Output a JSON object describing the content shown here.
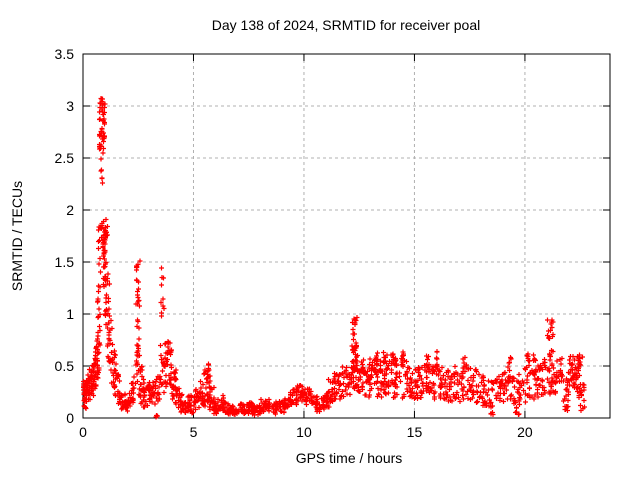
{
  "window": {
    "background": "#ffffff"
  },
  "chart_data": {
    "type": "scatter",
    "title": "Day 138 of 2024, SRMTID for receiver poal",
    "xlabel": "GPS time / hours",
    "ylabel": "SRMTID / TECUs",
    "xlim": [
      0,
      23.85
    ],
    "ylim": [
      0,
      3.5
    ],
    "xticks": [
      0,
      5,
      10,
      15,
      20
    ],
    "xtick_labels": [
      "0",
      "5",
      "10",
      "15",
      "20"
    ],
    "yticks": [
      0,
      0.5,
      1,
      1.5,
      2,
      2.5,
      3,
      3.5
    ],
    "ytick_labels": [
      "0",
      "0.5",
      "1",
      "1.5",
      "2",
      "2.5",
      "3",
      "3.5"
    ],
    "grid": true,
    "legend": "none",
    "marker": "plus",
    "marker_color": "#ff0000",
    "grid_color": "#b0b0b0",
    "axis_color": "#000000",
    "series": [
      {
        "name": "SRMTID",
        "note": "dense scatter summarized as segments [t_start_h, t_end_h, y_min_TECU, y_max_TECU, n_points]; notable peaks: 3.08 @ 0.9h, 1.52 @ 2.5h, 1.52 @ 3.6h, 0.52 @ 5.6h, 0.98 @ 12.3h, 0.97 @ 21.15h, data ends ~22.7h",
        "segments": [
          [
            0.0,
            0.18,
            0.08,
            0.35,
            26
          ],
          [
            0.12,
            0.32,
            0.14,
            0.42,
            26
          ],
          [
            0.28,
            0.48,
            0.2,
            0.5,
            26
          ],
          [
            0.44,
            0.62,
            0.28,
            0.58,
            26
          ],
          [
            0.56,
            0.74,
            0.38,
            0.72,
            24
          ],
          [
            0.62,
            0.78,
            0.6,
            1.0,
            14
          ],
          [
            0.66,
            0.8,
            0.95,
            1.55,
            10
          ],
          [
            0.7,
            0.84,
            1.45,
            1.95,
            10
          ],
          [
            0.8,
            0.92,
            1.95,
            2.5,
            6
          ],
          [
            0.74,
            1.0,
            2.52,
            3.08,
            48
          ],
          [
            0.86,
            1.06,
            1.6,
            2.0,
            16
          ],
          [
            0.92,
            1.12,
            1.25,
            1.9,
            30
          ],
          [
            1.0,
            1.22,
            0.82,
            1.4,
            24
          ],
          [
            1.1,
            1.34,
            0.52,
            0.95,
            22
          ],
          [
            1.26,
            1.5,
            0.3,
            0.65,
            20
          ],
          [
            1.42,
            1.66,
            0.16,
            0.42,
            16
          ],
          [
            1.6,
            1.9,
            0.08,
            0.24,
            18
          ],
          [
            1.85,
            2.15,
            0.05,
            0.18,
            16
          ],
          [
            2.1,
            2.38,
            0.12,
            0.42,
            18
          ],
          [
            2.4,
            2.58,
            0.2,
            1.52,
            42
          ],
          [
            2.56,
            2.78,
            0.14,
            0.5,
            18
          ],
          [
            2.74,
            3.05,
            0.1,
            0.34,
            22
          ],
          [
            3.0,
            3.28,
            0.12,
            0.36,
            20
          ],
          [
            3.3,
            3.46,
            0.005,
            0.03,
            3
          ],
          [
            3.26,
            3.5,
            0.14,
            0.4,
            16
          ],
          [
            3.5,
            3.66,
            0.6,
            1.52,
            13
          ],
          [
            3.54,
            3.76,
            0.24,
            0.58,
            14
          ],
          [
            3.7,
            4.02,
            0.3,
            0.78,
            32
          ],
          [
            3.98,
            4.24,
            0.18,
            0.5,
            20
          ],
          [
            4.18,
            4.48,
            0.1,
            0.3,
            20
          ],
          [
            4.42,
            4.78,
            0.05,
            0.18,
            22
          ],
          [
            4.72,
            5.08,
            0.05,
            0.22,
            22
          ],
          [
            5.02,
            5.32,
            0.08,
            0.28,
            18
          ],
          [
            5.26,
            5.52,
            0.1,
            0.35,
            18
          ],
          [
            5.48,
            5.76,
            0.15,
            0.52,
            30
          ],
          [
            5.7,
            5.94,
            0.08,
            0.35,
            18
          ],
          [
            5.88,
            6.14,
            0.03,
            0.14,
            16
          ],
          [
            6.08,
            6.38,
            0.07,
            0.22,
            18
          ],
          [
            6.32,
            6.6,
            0.05,
            0.17,
            14
          ],
          [
            6.54,
            7.0,
            0.02,
            0.12,
            26
          ],
          [
            6.95,
            7.42,
            0.04,
            0.14,
            26
          ],
          [
            7.36,
            7.72,
            0.04,
            0.15,
            22
          ],
          [
            7.66,
            8.06,
            0.03,
            0.12,
            24
          ],
          [
            8.0,
            8.44,
            0.06,
            0.18,
            24
          ],
          [
            8.38,
            8.78,
            0.04,
            0.14,
            22
          ],
          [
            8.72,
            9.12,
            0.05,
            0.16,
            22
          ],
          [
            9.06,
            9.42,
            0.07,
            0.2,
            20
          ],
          [
            9.36,
            9.72,
            0.12,
            0.3,
            22
          ],
          [
            9.66,
            10.06,
            0.15,
            0.32,
            24
          ],
          [
            10.0,
            10.34,
            0.13,
            0.28,
            20
          ],
          [
            10.28,
            10.62,
            0.08,
            0.22,
            18
          ],
          [
            10.56,
            10.92,
            0.06,
            0.2,
            18
          ],
          [
            10.86,
            11.16,
            0.1,
            0.28,
            18
          ],
          [
            11.1,
            11.44,
            0.14,
            0.38,
            22
          ],
          [
            11.38,
            11.8,
            0.18,
            0.45,
            26
          ],
          [
            11.74,
            12.16,
            0.22,
            0.5,
            28
          ],
          [
            12.18,
            12.4,
            0.45,
            0.98,
            34
          ],
          [
            12.18,
            12.44,
            0.28,
            0.52,
            14
          ],
          [
            12.4,
            12.7,
            0.25,
            0.6,
            24
          ],
          [
            12.64,
            13.0,
            0.2,
            0.52,
            26
          ],
          [
            12.94,
            13.3,
            0.22,
            0.58,
            26
          ],
          [
            13.22,
            13.36,
            0.52,
            0.66,
            7
          ],
          [
            13.3,
            13.7,
            0.2,
            0.58,
            28
          ],
          [
            13.56,
            13.7,
            0.52,
            0.64,
            6
          ],
          [
            13.64,
            14.04,
            0.22,
            0.62,
            28
          ],
          [
            13.92,
            14.06,
            0.52,
            0.68,
            7
          ],
          [
            14.04,
            14.48,
            0.18,
            0.58,
            28
          ],
          [
            14.4,
            14.58,
            0.5,
            0.64,
            8
          ],
          [
            14.52,
            14.94,
            0.2,
            0.55,
            26
          ],
          [
            14.88,
            15.32,
            0.18,
            0.5,
            26
          ],
          [
            15.26,
            15.66,
            0.18,
            0.52,
            24
          ],
          [
            15.52,
            15.68,
            0.48,
            0.6,
            6
          ],
          [
            15.62,
            16.06,
            0.18,
            0.52,
            26
          ],
          [
            15.96,
            16.1,
            0.48,
            0.64,
            6
          ],
          [
            16.06,
            16.5,
            0.18,
            0.52,
            26
          ],
          [
            16.44,
            16.9,
            0.15,
            0.48,
            24
          ],
          [
            16.84,
            17.26,
            0.15,
            0.5,
            24
          ],
          [
            17.18,
            17.38,
            0.42,
            0.6,
            8
          ],
          [
            17.34,
            17.8,
            0.14,
            0.48,
            24
          ],
          [
            17.74,
            18.16,
            0.12,
            0.42,
            22
          ],
          [
            18.1,
            18.56,
            0.1,
            0.38,
            20
          ],
          [
            18.38,
            18.58,
            0.03,
            0.12,
            6
          ],
          [
            18.52,
            18.96,
            0.12,
            0.4,
            20
          ],
          [
            18.9,
            19.3,
            0.15,
            0.45,
            22
          ],
          [
            19.2,
            19.38,
            0.42,
            0.58,
            7
          ],
          [
            19.32,
            19.76,
            0.12,
            0.42,
            20
          ],
          [
            19.56,
            19.74,
            0.03,
            0.12,
            6
          ],
          [
            19.7,
            20.12,
            0.15,
            0.48,
            22
          ],
          [
            20.02,
            20.2,
            0.45,
            0.66,
            8
          ],
          [
            20.16,
            20.6,
            0.18,
            0.48,
            22
          ],
          [
            20.38,
            20.52,
            0.45,
            0.62,
            6
          ],
          [
            20.54,
            20.96,
            0.2,
            0.52,
            22
          ],
          [
            20.8,
            20.94,
            0.48,
            0.6,
            5
          ],
          [
            21.02,
            21.28,
            0.28,
            0.97,
            30
          ],
          [
            21.06,
            21.34,
            0.22,
            0.42,
            12
          ],
          [
            21.3,
            21.7,
            0.22,
            0.58,
            24
          ],
          [
            21.64,
            22.0,
            0.1,
            0.38,
            18
          ],
          [
            21.8,
            21.96,
            0.06,
            0.14,
            5
          ],
          [
            21.96,
            22.3,
            0.28,
            0.6,
            24
          ],
          [
            22.24,
            22.5,
            0.16,
            0.44,
            16
          ],
          [
            22.38,
            22.62,
            0.44,
            0.62,
            14
          ],
          [
            22.5,
            22.7,
            0.06,
            0.36,
            14
          ]
        ]
      }
    ]
  }
}
